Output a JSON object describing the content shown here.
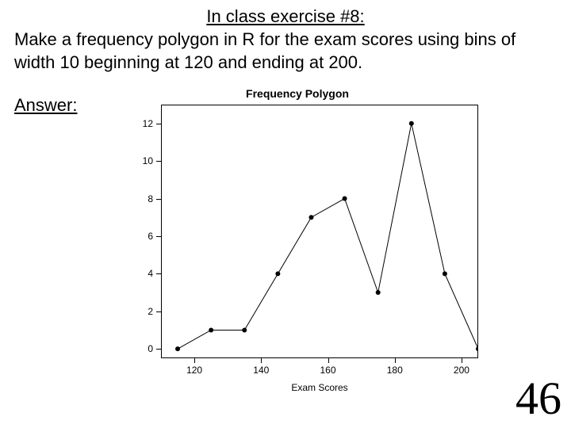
{
  "title": "In class exercise #8:",
  "instruction": "Make a frequency polygon in R for the exam scores using bins of width 10 beginning at 120 and ending at 200.",
  "answer_label": "Answer:",
  "slide_number": "46",
  "chart": {
    "type": "line",
    "title": "Frequency Polygon",
    "xlabel": "Exam Scores",
    "x_ticks": [
      120,
      140,
      160,
      180,
      200
    ],
    "y_ticks": [
      0,
      2,
      4,
      6,
      8,
      10,
      12
    ],
    "xlim": [
      110,
      205
    ],
    "ylim": [
      -0.5,
      13
    ],
    "x_values": [
      115,
      125,
      135,
      145,
      155,
      165,
      175,
      185,
      195,
      205
    ],
    "y_values": [
      0,
      1,
      1,
      4,
      7,
      8,
      3,
      12,
      4,
      0
    ],
    "line_color": "#000000",
    "marker": "circle",
    "marker_size": 3,
    "background_color": "#ffffff",
    "title_fontsize": 14,
    "label_fontsize": 12
  }
}
